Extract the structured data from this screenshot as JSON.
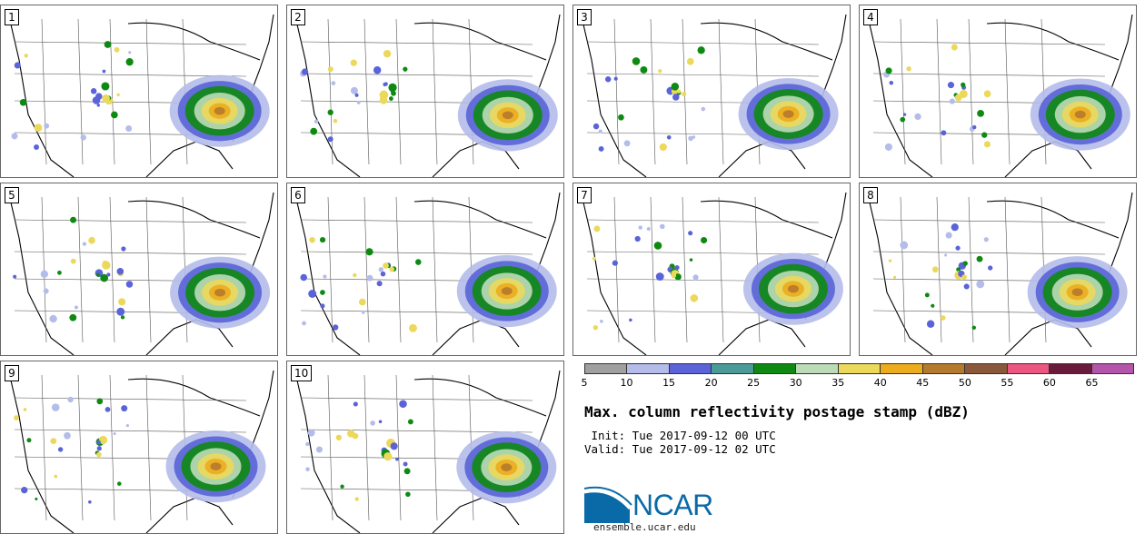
{
  "panels": [
    "1",
    "2",
    "3",
    "4",
    "5",
    "6",
    "7",
    "8",
    "9",
    "10"
  ],
  "colorbar": {
    "colors": [
      "#a0a0a0",
      "#b4bcea",
      "#5a64d8",
      "#4a9a98",
      "#0e8a12",
      "#bcdcb8",
      "#ecd85a",
      "#ecac1e",
      "#b67a2e",
      "#8a583a",
      "#ec5680",
      "#6a1a3a",
      "#b454aa"
    ],
    "labels": [
      "5",
      "10",
      "15",
      "20",
      "25",
      "30",
      "35",
      "40",
      "45",
      "50",
      "55",
      "60",
      "65"
    ]
  },
  "title": "Max. column reflectivity postage stamp (dBZ)",
  "init": " Init: Tue 2017-09-12 00 UTC",
  "valid": "Valid: Tue 2017-09-12 02 UTC",
  "logo": {
    "text": "NCAR",
    "site": "ensemble.ucar.edu",
    "color": "#0a6aa8"
  }
}
